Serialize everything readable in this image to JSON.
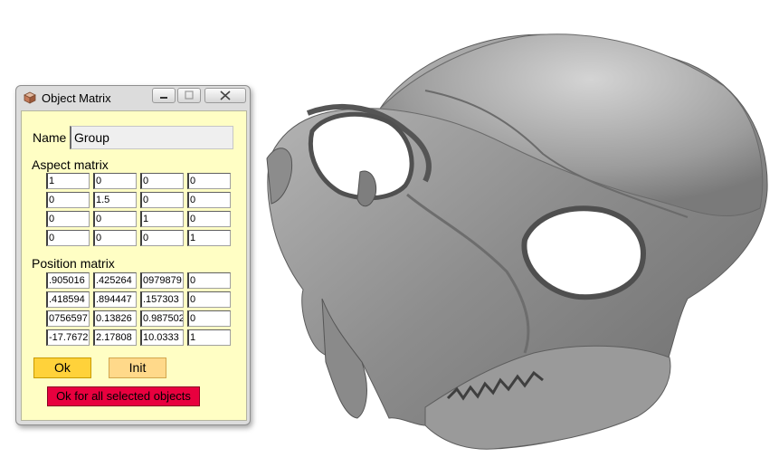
{
  "window": {
    "title": "Object Matrix"
  },
  "name_label": "Name",
  "name_value": "Group",
  "aspect_label": "Aspect matrix",
  "aspect_matrix": [
    [
      "1",
      "0",
      "0",
      "0"
    ],
    [
      "0",
      "1.5",
      "0",
      "0"
    ],
    [
      "0",
      "0",
      "1",
      "0"
    ],
    [
      "0",
      "0",
      "0",
      "1"
    ]
  ],
  "position_label": "Position matrix",
  "position_matrix": [
    [
      ".905016",
      ".425264",
      "0979879",
      "0"
    ],
    [
      ".418594",
      ".894447",
      ".157303",
      "0"
    ],
    [
      "0756597",
      "0.13826",
      "0.987502",
      "0"
    ],
    [
      "-17.7672",
      "2.17808",
      "10.0333",
      "1"
    ]
  ],
  "buttons": {
    "ok": "Ok",
    "init": "Init",
    "all": "Ok for all selected objects"
  },
  "colors": {
    "panel": "#fffec4",
    "ok": "#ffd23a",
    "init": "#ffd98a",
    "all": "#e8003e",
    "model": "#8f8f8f"
  },
  "icons": {
    "window": "cube-icon",
    "minimize": "minimize-icon",
    "maximize": "maximize-icon",
    "close": "close-icon"
  }
}
